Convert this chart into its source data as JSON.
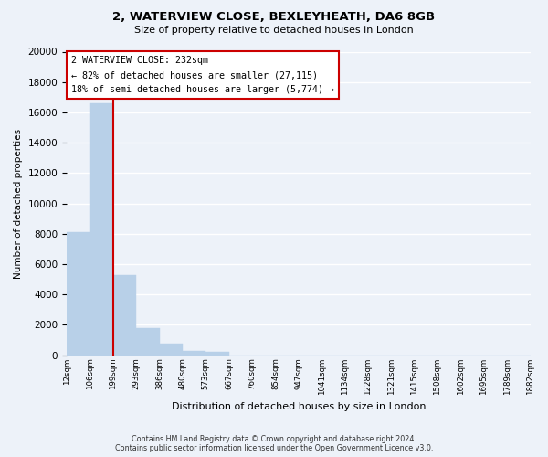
{
  "title": "2, WATERVIEW CLOSE, BEXLEYHEATH, DA6 8GB",
  "subtitle": "Size of property relative to detached houses in London",
  "xlabel": "Distribution of detached houses by size in London",
  "ylabel": "Number of detached properties",
  "bar_values": [
    8100,
    16600,
    5300,
    1800,
    750,
    280,
    200,
    0,
    0,
    0,
    0,
    0,
    0,
    0,
    0,
    0,
    0,
    0,
    0,
    0
  ],
  "tick_labels": [
    "12sqm",
    "106sqm",
    "199sqm",
    "293sqm",
    "386sqm",
    "480sqm",
    "573sqm",
    "667sqm",
    "760sqm",
    "854sqm",
    "947sqm",
    "1041sqm",
    "1134sqm",
    "1228sqm",
    "1321sqm",
    "1415sqm",
    "1508sqm",
    "1602sqm",
    "1695sqm",
    "1789sqm",
    "1882sqm"
  ],
  "bar_color": "#b8d0e8",
  "bar_edge_color": "#b8d0e8",
  "property_line_color": "#cc0000",
  "property_line_x": 1.5,
  "ylim": [
    0,
    20000
  ],
  "yticks": [
    0,
    2000,
    4000,
    6000,
    8000,
    10000,
    12000,
    14000,
    16000,
    18000,
    20000
  ],
  "annotation_title": "2 WATERVIEW CLOSE: 232sqm",
  "annotation_line1": "← 82% of detached houses are smaller (27,115)",
  "annotation_line2": "18% of semi-detached houses are larger (5,774) →",
  "annotation_box_facecolor": "#ffffff",
  "annotation_box_edgecolor": "#cc0000",
  "footer_line1": "Contains HM Land Registry data © Crown copyright and database right 2024.",
  "footer_line2": "Contains public sector information licensed under the Open Government Licence v3.0.",
  "background_color": "#edf2f9",
  "grid_color": "#ffffff"
}
